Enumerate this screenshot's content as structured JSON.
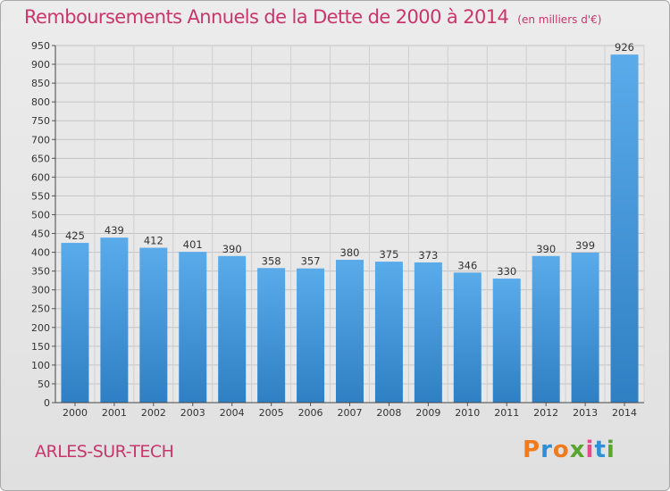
{
  "header": {
    "title": "Remboursements Annuels de la Dette de 2000 à 2014",
    "subtitle": "(en milliers d'€)"
  },
  "footer": {
    "commune": "ARLES-SUR-TECH",
    "logo": "Proxiti",
    "logo_colors": [
      "#f07a1e",
      "#2f8fd6",
      "#f07a1e",
      "#5aa531",
      "#e64a8a",
      "#2f8fd6",
      "#5aa531"
    ]
  },
  "chart_data": {
    "type": "bar",
    "title": "Remboursements Annuels de la Dette de 2000 à 2014",
    "subtitle": "(en milliers d'€)",
    "categories": [
      "2000",
      "2001",
      "2002",
      "2003",
      "2004",
      "2005",
      "2006",
      "2007",
      "2008",
      "2009",
      "2010",
      "2011",
      "2012",
      "2013",
      "2014"
    ],
    "values": [
      425,
      439,
      412,
      401,
      390,
      358,
      357,
      380,
      375,
      373,
      346,
      330,
      390,
      399,
      926
    ],
    "ylim": [
      0,
      950
    ],
    "yticks": [
      0,
      50,
      100,
      150,
      200,
      250,
      300,
      350,
      400,
      450,
      500,
      550,
      600,
      650,
      700,
      750,
      800,
      850,
      900,
      950
    ],
    "grid": true,
    "bar_color": "#3d8fd3",
    "bar_color_light": "#5aabea"
  }
}
